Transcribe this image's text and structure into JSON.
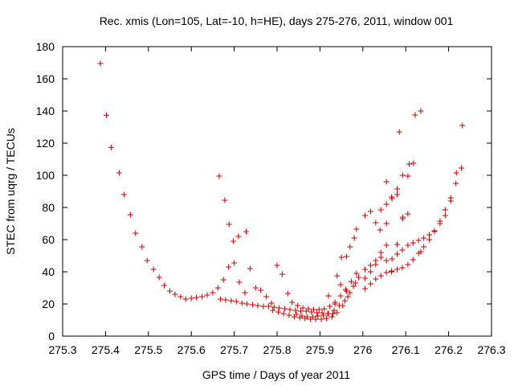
{
  "chart_data": {
    "type": "scatter",
    "title": "Rec. xmis (Lon=105, Lat=-10, h=HE), days 275-276, 2011, window 001",
    "xlabel": "GPS time / Days of year 2011",
    "ylabel": "STEC from uqrg / TECUs",
    "xlim": [
      275.3,
      276.3
    ],
    "ylim": [
      0,
      180
    ],
    "xticks": [
      275.3,
      275.4,
      275.5,
      275.6,
      275.7,
      275.8,
      275.9,
      276,
      276.1,
      276.2,
      276.3
    ],
    "xtick_labels": [
      "275.3",
      "275.4",
      "275.5",
      "275.6",
      "275.7",
      "275.8",
      "275.9",
      "276",
      "276.1",
      "276.2",
      "276.3"
    ],
    "yticks": [
      0,
      20,
      40,
      60,
      80,
      100,
      120,
      140,
      160,
      180
    ],
    "ytick_labels": [
      "0",
      "20",
      "40",
      "60",
      "80",
      "100",
      "120",
      "140",
      "160",
      "180"
    ],
    "grid": false,
    "legend": "none",
    "marker": "+",
    "marker_color": "#cc0000",
    "points": [
      [
        275.388,
        169.5
      ],
      [
        275.402,
        137.3
      ],
      [
        275.413,
        117.3
      ],
      [
        275.432,
        101.5
      ],
      [
        275.443,
        88.0
      ],
      [
        275.458,
        75.5
      ],
      [
        275.47,
        64.0
      ],
      [
        275.485,
        55.5
      ],
      [
        275.497,
        47.0
      ],
      [
        275.512,
        41.5
      ],
      [
        275.525,
        36.5
      ],
      [
        275.537,
        31.5
      ],
      [
        275.55,
        28.0
      ],
      [
        275.562,
        26.0
      ],
      [
        275.575,
        24.5
      ],
      [
        275.587,
        23.0
      ],
      [
        275.6,
        23.5
      ],
      [
        275.612,
        24.0
      ],
      [
        275.625,
        24.5
      ],
      [
        275.637,
        25.5
      ],
      [
        275.65,
        27.0
      ],
      [
        275.662,
        30.0
      ],
      [
        275.675,
        35.0
      ],
      [
        275.687,
        43.0
      ],
      [
        275.7,
        45.5
      ],
      [
        275.712,
        33.5
      ],
      [
        275.725,
        27.0
      ],
      [
        275.737,
        42.0
      ],
      [
        275.75,
        30.0
      ],
      [
        275.762,
        28.5
      ],
      [
        275.775,
        24.5
      ],
      [
        275.787,
        20.5
      ],
      [
        275.8,
        44.0
      ],
      [
        275.812,
        38.5
      ],
      [
        275.825,
        26.5
      ],
      [
        275.665,
        99.5
      ],
      [
        275.678,
        84.5
      ],
      [
        275.688,
        69.5
      ],
      [
        275.698,
        59.0
      ],
      [
        275.71,
        62.0
      ],
      [
        275.728,
        65.0
      ],
      [
        275.668,
        23.0
      ],
      [
        275.68,
        22.5
      ],
      [
        275.693,
        22.0
      ],
      [
        275.705,
        21.5
      ],
      [
        275.718,
        20.5
      ],
      [
        275.73,
        20.0
      ],
      [
        275.743,
        19.5
      ],
      [
        275.755,
        19.0
      ],
      [
        275.768,
        18.5
      ],
      [
        275.78,
        18.5
      ],
      [
        275.793,
        18.0
      ],
      [
        275.805,
        17.5
      ],
      [
        275.818,
        17.0
      ],
      [
        275.83,
        16.5
      ],
      [
        275.843,
        16.0
      ],
      [
        275.855,
        15.5
      ],
      [
        275.868,
        15.5
      ],
      [
        275.88,
        15.0
      ],
      [
        275.893,
        14.5
      ],
      [
        275.905,
        14.5
      ],
      [
        275.918,
        14.0
      ],
      [
        275.93,
        14.0
      ],
      [
        275.79,
        16.0
      ],
      [
        275.803,
        15.0
      ],
      [
        275.815,
        14.0
      ],
      [
        275.828,
        13.0
      ],
      [
        275.84,
        12.0
      ],
      [
        275.853,
        11.5
      ],
      [
        275.865,
        11.0
      ],
      [
        275.878,
        10.5
      ],
      [
        275.89,
        10.5
      ],
      [
        275.903,
        10.5
      ],
      [
        275.915,
        11.0
      ],
      [
        275.928,
        12.0
      ],
      [
        275.94,
        14.5
      ],
      [
        275.953,
        19.0
      ],
      [
        275.965,
        24.5
      ],
      [
        275.978,
        31.0
      ],
      [
        275.99,
        36.5
      ],
      [
        275.835,
        21.0
      ],
      [
        275.848,
        19.0
      ],
      [
        275.86,
        17.5
      ],
      [
        275.873,
        17.0
      ],
      [
        275.885,
        16.5
      ],
      [
        275.898,
        16.5
      ],
      [
        275.91,
        17.0
      ],
      [
        275.923,
        18.5
      ],
      [
        275.935,
        21.0
      ],
      [
        275.948,
        25.0
      ],
      [
        275.96,
        29.0
      ],
      [
        275.973,
        34.0
      ],
      [
        275.985,
        39.0
      ],
      [
        275.845,
        13.5
      ],
      [
        275.858,
        12.5
      ],
      [
        275.87,
        12.0
      ],
      [
        275.883,
        12.0
      ],
      [
        275.895,
        12.5
      ],
      [
        275.908,
        13.0
      ],
      [
        275.92,
        14.0
      ],
      [
        275.933,
        16.0
      ],
      [
        275.945,
        19.0
      ],
      [
        275.958,
        22.0
      ],
      [
        275.97,
        27.0
      ],
      [
        275.983,
        33.0
      ],
      [
        275.94,
        37.5
      ],
      [
        275.95,
        49.0
      ],
      [
        275.962,
        49.5
      ],
      [
        275.97,
        55.5
      ],
      [
        275.98,
        61.0
      ],
      [
        275.985,
        66.5
      ],
      [
        275.92,
        25.0
      ],
      [
        275.935,
        20.0
      ],
      [
        275.948,
        32.0
      ],
      [
        275.962,
        28.0
      ],
      [
        276.005,
        29.5
      ],
      [
        276.018,
        32.5
      ],
      [
        276.03,
        35.5
      ],
      [
        276.042,
        37.5
      ],
      [
        276.055,
        39.5
      ],
      [
        276.067,
        40.5
      ],
      [
        276.08,
        41.5
      ],
      [
        276.092,
        42.5
      ],
      [
        276.105,
        44.5
      ],
      [
        276.117,
        47.5
      ],
      [
        276.13,
        51.5
      ],
      [
        276.142,
        55.5
      ],
      [
        276.155,
        60.0
      ],
      [
        276.167,
        65.5
      ],
      [
        276.18,
        71.5
      ],
      [
        276.192,
        78.5
      ],
      [
        276.205,
        86.0
      ],
      [
        276.217,
        95.0
      ],
      [
        276.23,
        104.5
      ],
      [
        276.005,
        41.5
      ],
      [
        276.018,
        44.0
      ],
      [
        276.03,
        47.0
      ],
      [
        276.042,
        52.0
      ],
      [
        276.055,
        56.5
      ],
      [
        276.067,
        40.0
      ],
      [
        276.08,
        57.0
      ],
      [
        276.092,
        53.5
      ],
      [
        276.105,
        56.5
      ],
      [
        276.117,
        58.0
      ],
      [
        276.13,
        59.5
      ],
      [
        276.142,
        61.0
      ],
      [
        276.155,
        63.0
      ],
      [
        276.167,
        65.0
      ],
      [
        276.18,
        70.0
      ],
      [
        276.192,
        75.0
      ],
      [
        276.205,
        84.0
      ],
      [
        276.218,
        101.5
      ],
      [
        276.232,
        131.0
      ],
      [
        276.005,
        36.0
      ],
      [
        276.018,
        40.0
      ],
      [
        276.03,
        44.5
      ],
      [
        276.042,
        49.0
      ],
      [
        276.055,
        47.0
      ],
      [
        276.068,
        48.0
      ],
      [
        276.08,
        51.0
      ],
      [
        276.093,
        74.0
      ],
      [
        276.105,
        76.0
      ],
      [
        276.005,
        75.0
      ],
      [
        276.018,
        77.5
      ],
      [
        276.03,
        70.5
      ],
      [
        276.042,
        78.5
      ],
      [
        276.055,
        82.0
      ],
      [
        276.068,
        85.5
      ],
      [
        276.08,
        88.0
      ],
      [
        276.093,
        100.0
      ],
      [
        276.105,
        99.5
      ],
      [
        276.118,
        107.5
      ],
      [
        276.055,
        96.0
      ],
      [
        276.067,
        86.5
      ],
      [
        276.08,
        91.5
      ],
      [
        276.085,
        127.0
      ],
      [
        276.108,
        107.0
      ],
      [
        276.122,
        137.5
      ],
      [
        276.135,
        140.0
      ],
      [
        276.04,
        66.0
      ],
      [
        276.055,
        70.0
      ],
      [
        276.08,
        57.0
      ],
      [
        276.093,
        73.0
      ],
      [
        276.135,
        52.5
      ]
    ]
  }
}
